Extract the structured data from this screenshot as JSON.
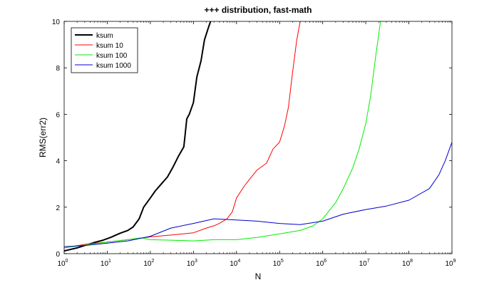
{
  "chart_data": {
    "type": "line",
    "title": "+++ distribution, fast-math",
    "xlabel": "N",
    "ylabel": "RMS(err2)",
    "xscale": "log",
    "xlim": [
      1,
      1000000000
    ],
    "ylim": [
      0,
      10
    ],
    "grid": false,
    "legend_position": "top-left",
    "x_ticks": [
      {
        "value": 1,
        "base": "10",
        "exp": "0"
      },
      {
        "value": 10,
        "base": "10",
        "exp": "1"
      },
      {
        "value": 100,
        "base": "10",
        "exp": "2"
      },
      {
        "value": 1000,
        "base": "10",
        "exp": "3"
      },
      {
        "value": 10000,
        "base": "10",
        "exp": "4"
      },
      {
        "value": 100000,
        "base": "10",
        "exp": "5"
      },
      {
        "value": 1000000,
        "base": "10",
        "exp": "6"
      },
      {
        "value": 10000000,
        "base": "10",
        "exp": "7"
      },
      {
        "value": 100000000,
        "base": "10",
        "exp": "8"
      },
      {
        "value": 1000000000,
        "base": "10",
        "exp": "9"
      }
    ],
    "y_ticks": [
      {
        "value": 0,
        "label": "0"
      },
      {
        "value": 2,
        "label": "2"
      },
      {
        "value": 4,
        "label": "4"
      },
      {
        "value": 6,
        "label": "6"
      },
      {
        "value": 8,
        "label": "8"
      },
      {
        "value": 10,
        "label": "10"
      }
    ],
    "series": [
      {
        "name": "ksum",
        "color": "#000000",
        "width": 2,
        "points": [
          [
            1,
            0.12
          ],
          [
            2,
            0.25
          ],
          [
            3,
            0.35
          ],
          [
            5,
            0.48
          ],
          [
            8,
            0.58
          ],
          [
            12,
            0.7
          ],
          [
            20,
            0.88
          ],
          [
            30,
            1.0
          ],
          [
            40,
            1.15
          ],
          [
            55,
            1.5
          ],
          [
            70,
            2.0
          ],
          [
            100,
            2.4
          ],
          [
            130,
            2.7
          ],
          [
            180,
            3.0
          ],
          [
            250,
            3.3
          ],
          [
            330,
            3.7
          ],
          [
            450,
            4.2
          ],
          [
            600,
            4.6
          ],
          [
            700,
            5.8
          ],
          [
            800,
            6.0
          ],
          [
            1000,
            6.5
          ],
          [
            1200,
            7.6
          ],
          [
            1500,
            8.3
          ],
          [
            1800,
            9.2
          ],
          [
            2200,
            9.7
          ],
          [
            2500,
            10.0
          ]
        ]
      },
      {
        "name": "ksum 10",
        "color": "#ff0000",
        "width": 1,
        "points": [
          [
            1,
            0.25
          ],
          [
            3,
            0.4
          ],
          [
            10,
            0.5
          ],
          [
            30,
            0.6
          ],
          [
            100,
            0.72
          ],
          [
            300,
            0.8
          ],
          [
            1000,
            0.9
          ],
          [
            2000,
            1.1
          ],
          [
            3000,
            1.2
          ],
          [
            4000,
            1.3
          ],
          [
            6000,
            1.5
          ],
          [
            8000,
            1.8
          ],
          [
            10000,
            2.4
          ],
          [
            15000,
            2.9
          ],
          [
            20000,
            3.2
          ],
          [
            30000,
            3.6
          ],
          [
            50000,
            3.9
          ],
          [
            70000,
            4.5
          ],
          [
            100000,
            4.8
          ],
          [
            130000,
            5.5
          ],
          [
            160000,
            6.3
          ],
          [
            200000,
            7.8
          ],
          [
            250000,
            9.2
          ],
          [
            300000,
            10.0
          ]
        ]
      },
      {
        "name": "ksum 100",
        "color": "#00ee00",
        "width": 1,
        "points": [
          [
            1,
            0.25
          ],
          [
            10,
            0.5
          ],
          [
            30,
            0.6
          ],
          [
            60,
            0.68
          ],
          [
            100,
            0.6
          ],
          [
            300,
            0.58
          ],
          [
            1000,
            0.55
          ],
          [
            3000,
            0.6
          ],
          [
            10000,
            0.6
          ],
          [
            30000,
            0.7
          ],
          [
            100000,
            0.85
          ],
          [
            300000,
            1.0
          ],
          [
            600000,
            1.2
          ],
          [
            1000000,
            1.5
          ],
          [
            2000000,
            2.2
          ],
          [
            3000000,
            2.8
          ],
          [
            5000000,
            3.7
          ],
          [
            7000000,
            4.5
          ],
          [
            10000000,
            5.6
          ],
          [
            13000000,
            6.8
          ],
          [
            17000000,
            8.5
          ],
          [
            22000000,
            10.0
          ]
        ]
      },
      {
        "name": "ksum 1000",
        "color": "#0000cc",
        "width": 1,
        "points": [
          [
            1,
            0.3
          ],
          [
            3,
            0.35
          ],
          [
            10,
            0.45
          ],
          [
            30,
            0.55
          ],
          [
            100,
            0.75
          ],
          [
            300,
            1.1
          ],
          [
            1000,
            1.3
          ],
          [
            3000,
            1.5
          ],
          [
            10000,
            1.45
          ],
          [
            30000,
            1.4
          ],
          [
            100000,
            1.3
          ],
          [
            300000,
            1.25
          ],
          [
            1000000,
            1.4
          ],
          [
            3000000,
            1.7
          ],
          [
            10000000,
            1.9
          ],
          [
            30000000,
            2.05
          ],
          [
            100000000,
            2.3
          ],
          [
            300000000,
            2.8
          ],
          [
            500000000,
            3.4
          ],
          [
            700000000,
            4.0
          ],
          [
            1000000000,
            4.8
          ]
        ]
      }
    ]
  }
}
